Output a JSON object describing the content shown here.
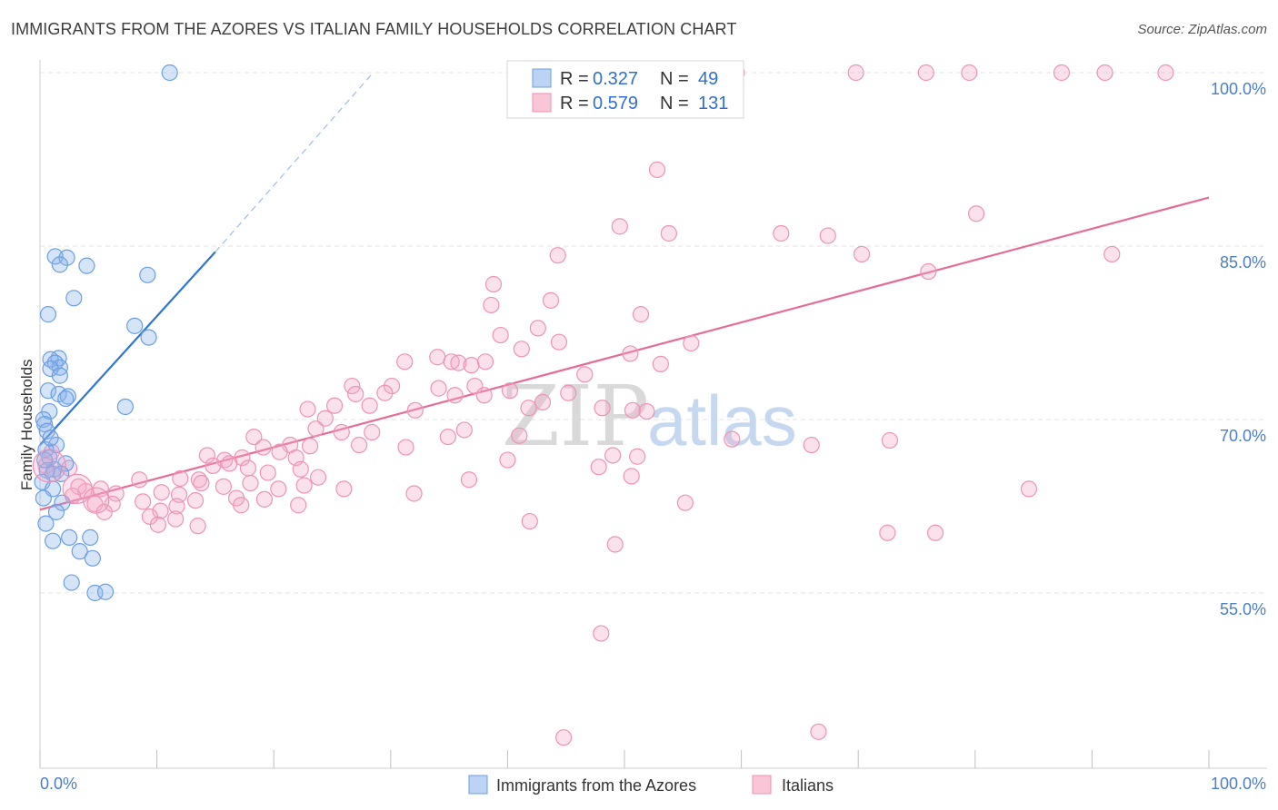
{
  "title": "IMMIGRANTS FROM THE AZORES VS ITALIAN FAMILY HOUSEHOLDS CORRELATION CHART",
  "source": "Source: ZipAtlas.com",
  "watermark": {
    "zip": "ZIP",
    "atlas": "atlas"
  },
  "colors": {
    "blue": "#6b9ee6",
    "blue_line": "#2f75d2",
    "pink": "#f08fb3",
    "pink_line": "#e56b98",
    "tick": "#4a7ec9",
    "grid": "#e3e3e3"
  },
  "legend": {
    "r_label": "R =",
    "n_label": "N =",
    "items": [
      {
        "name": "Immigrants from the Azores",
        "r": "0.327",
        "n": "49"
      },
      {
        "name": "Italians",
        "r": "0.579",
        "n": "131"
      }
    ]
  },
  "chart_data": {
    "type": "scatter",
    "title": "IMMIGRANTS FROM THE AZORES VS ITALIAN FAMILY HOUSEHOLDS CORRELATION CHART",
    "xlabel": "",
    "ylabel": "Family Households",
    "xlim": [
      0,
      100
    ],
    "ylim": [
      40,
      102
    ],
    "x_tick_labels": [
      "0.0%",
      "100.0%"
    ],
    "y_ticks": [
      55,
      70,
      85,
      100
    ],
    "y_tick_labels": [
      "55.0%",
      "70.0%",
      "85.0%",
      "100.0%"
    ],
    "grid": "horizontal dashed",
    "legend_position": "top-center",
    "series": [
      {
        "name": "Immigrants from the Azores",
        "color": "#6b9ee6",
        "r": 0.327,
        "n": 49,
        "trend": {
          "x": [
            0,
            15
          ],
          "y": [
            67.8,
            84.5
          ],
          "extend_to": [
            28.5,
            100
          ]
        },
        "points": [
          [
            11.1,
            100
          ],
          [
            1.3,
            84.1
          ],
          [
            2.3,
            84.0
          ],
          [
            1.7,
            83.4
          ],
          [
            4.0,
            83.3
          ],
          [
            9.2,
            82.5
          ],
          [
            2.9,
            80.5
          ],
          [
            0.7,
            79.1
          ],
          [
            8.1,
            78.1
          ],
          [
            9.3,
            77.1
          ],
          [
            1.6,
            75.3
          ],
          [
            0.9,
            75.2
          ],
          [
            1.3,
            74.9
          ],
          [
            1.7,
            74.5
          ],
          [
            0.9,
            74.4
          ],
          [
            1.7,
            73.8
          ],
          [
            0.7,
            72.5
          ],
          [
            1.6,
            72.2
          ],
          [
            2.4,
            72.0
          ],
          [
            2.2,
            71.8
          ],
          [
            7.3,
            71.1
          ],
          [
            0.8,
            70.7
          ],
          [
            0.3,
            70.0
          ],
          [
            0.4,
            69.6
          ],
          [
            0.6,
            69.0
          ],
          [
            1.4,
            67.8
          ],
          [
            0.5,
            67.4
          ],
          [
            0.8,
            66.7
          ],
          [
            2.2,
            66.2
          ],
          [
            1.2,
            65.7
          ],
          [
            0.6,
            65.6
          ],
          [
            1.1,
            65.3
          ],
          [
            1.8,
            65.3
          ],
          [
            0.2,
            64.6
          ],
          [
            1.1,
            64.0
          ],
          [
            0.3,
            63.2
          ],
          [
            1.9,
            62.8
          ],
          [
            1.4,
            62.0
          ],
          [
            0.5,
            61.0
          ],
          [
            1.1,
            59.5
          ],
          [
            2.5,
            59.8
          ],
          [
            4.3,
            59.8
          ],
          [
            3.4,
            58.6
          ],
          [
            4.5,
            58.0
          ],
          [
            2.7,
            55.9
          ],
          [
            4.7,
            55.0
          ],
          [
            5.6,
            55.1
          ],
          [
            0.4,
            66.5
          ],
          [
            0.9,
            68.4
          ]
        ]
      },
      {
        "name": "Italians",
        "color": "#f08fb3",
        "r": 0.579,
        "n": 131,
        "trend": {
          "x": [
            0,
            100
          ],
          "y": [
            62.2,
            89.2
          ]
        },
        "points": [
          [
            59.6,
            100
          ],
          [
            69.8,
            100
          ],
          [
            75.8,
            100
          ],
          [
            79.5,
            100
          ],
          [
            87.4,
            100
          ],
          [
            91.1,
            100
          ],
          [
            96.3,
            100
          ],
          [
            52.8,
            91.6
          ],
          [
            80.1,
            87.8
          ],
          [
            49.6,
            86.7
          ],
          [
            53.8,
            86.1
          ],
          [
            63.4,
            86.1
          ],
          [
            67.4,
            85.9
          ],
          [
            44.3,
            84.2
          ],
          [
            70.3,
            84.3
          ],
          [
            91.7,
            84.3
          ],
          [
            76.0,
            82.8
          ],
          [
            38.8,
            81.7
          ],
          [
            43.7,
            80.3
          ],
          [
            38.6,
            79.9
          ],
          [
            51.4,
            79.1
          ],
          [
            42.6,
            77.9
          ],
          [
            39.4,
            77.3
          ],
          [
            44.4,
            76.7
          ],
          [
            41.2,
            76.1
          ],
          [
            55.7,
            76.6
          ],
          [
            34.0,
            75.4
          ],
          [
            31.2,
            75.0
          ],
          [
            35.2,
            75.0
          ],
          [
            35.8,
            74.9
          ],
          [
            50.5,
            75.7
          ],
          [
            53.1,
            74.8
          ],
          [
            36.9,
            74.7
          ],
          [
            38.1,
            75.0
          ],
          [
            46.6,
            73.9
          ],
          [
            26.7,
            72.9
          ],
          [
            30.1,
            72.9
          ],
          [
            34.1,
            72.7
          ],
          [
            37.2,
            72.9
          ],
          [
            40.2,
            72.5
          ],
          [
            45.2,
            72.3
          ],
          [
            27.0,
            72.2
          ],
          [
            29.5,
            72.3
          ],
          [
            35.5,
            72.1
          ],
          [
            38.0,
            72.1
          ],
          [
            22.9,
            70.9
          ],
          [
            25.2,
            71.2
          ],
          [
            28.2,
            71.2
          ],
          [
            32.1,
            70.8
          ],
          [
            48.1,
            71.0
          ],
          [
            41.8,
            71.0
          ],
          [
            43.0,
            71.5
          ],
          [
            50.7,
            70.8
          ],
          [
            51.9,
            70.7
          ],
          [
            24.4,
            70.1
          ],
          [
            23.6,
            69.2
          ],
          [
            25.8,
            68.9
          ],
          [
            28.4,
            68.9
          ],
          [
            36.3,
            69.1
          ],
          [
            41.0,
            68.6
          ],
          [
            59.2,
            68.3
          ],
          [
            18.3,
            68.5
          ],
          [
            21.4,
            67.8
          ],
          [
            23.1,
            67.7
          ],
          [
            31.3,
            67.6
          ],
          [
            34.9,
            68.5
          ],
          [
            14.3,
            66.9
          ],
          [
            15.8,
            66.5
          ],
          [
            17.3,
            66.7
          ],
          [
            19.1,
            67.6
          ],
          [
            20.5,
            67.2
          ],
          [
            21.9,
            66.7
          ],
          [
            27.3,
            67.8
          ],
          [
            49.0,
            66.9
          ],
          [
            51.1,
            66.8
          ],
          [
            72.7,
            68.2
          ],
          [
            66.0,
            67.8
          ],
          [
            14.8,
            66.0
          ],
          [
            16.2,
            66.2
          ],
          [
            17.8,
            65.8
          ],
          [
            19.5,
            65.4
          ],
          [
            22.3,
            65.7
          ],
          [
            23.8,
            65.0
          ],
          [
            40.0,
            66.5
          ],
          [
            47.8,
            65.9
          ],
          [
            50.6,
            65.1
          ],
          [
            12.0,
            64.9
          ],
          [
            13.6,
            64.8
          ],
          [
            15.7,
            64.2
          ],
          [
            18.0,
            64.5
          ],
          [
            20.4,
            64.0
          ],
          [
            22.6,
            64.3
          ],
          [
            26.0,
            64.0
          ],
          [
            36.7,
            64.8
          ],
          [
            13.8,
            64.5
          ],
          [
            8.5,
            64.8
          ],
          [
            10.4,
            63.7
          ],
          [
            11.9,
            63.5
          ],
          [
            13.3,
            63.0
          ],
          [
            16.8,
            63.2
          ],
          [
            19.2,
            63.1
          ],
          [
            32.0,
            63.6
          ],
          [
            5.2,
            64.0
          ],
          [
            6.5,
            63.6
          ],
          [
            3.9,
            63.8
          ],
          [
            4.7,
            62.7
          ],
          [
            6.2,
            62.7
          ],
          [
            8.8,
            62.9
          ],
          [
            10.3,
            62.1
          ],
          [
            11.7,
            62.5
          ],
          [
            17.2,
            62.6
          ],
          [
            22.1,
            62.6
          ],
          [
            5.5,
            62.0
          ],
          [
            9.4,
            61.6
          ],
          [
            11.6,
            61.4
          ],
          [
            10.1,
            60.9
          ],
          [
            13.5,
            60.8
          ],
          [
            41.9,
            61.2
          ],
          [
            49.2,
            59.2
          ],
          [
            55.2,
            62.8
          ],
          [
            72.5,
            60.2
          ],
          [
            76.6,
            60.2
          ],
          [
            84.6,
            64.0
          ],
          [
            48.0,
            51.5
          ],
          [
            44.8,
            42.5
          ],
          [
            66.6,
            43.0
          ],
          [
            0.5,
            66.0
          ],
          [
            1.0,
            67.2
          ],
          [
            2.5,
            65.8
          ],
          [
            3.3,
            64.2
          ],
          [
            2.8,
            63.4
          ]
        ]
      }
    ]
  }
}
